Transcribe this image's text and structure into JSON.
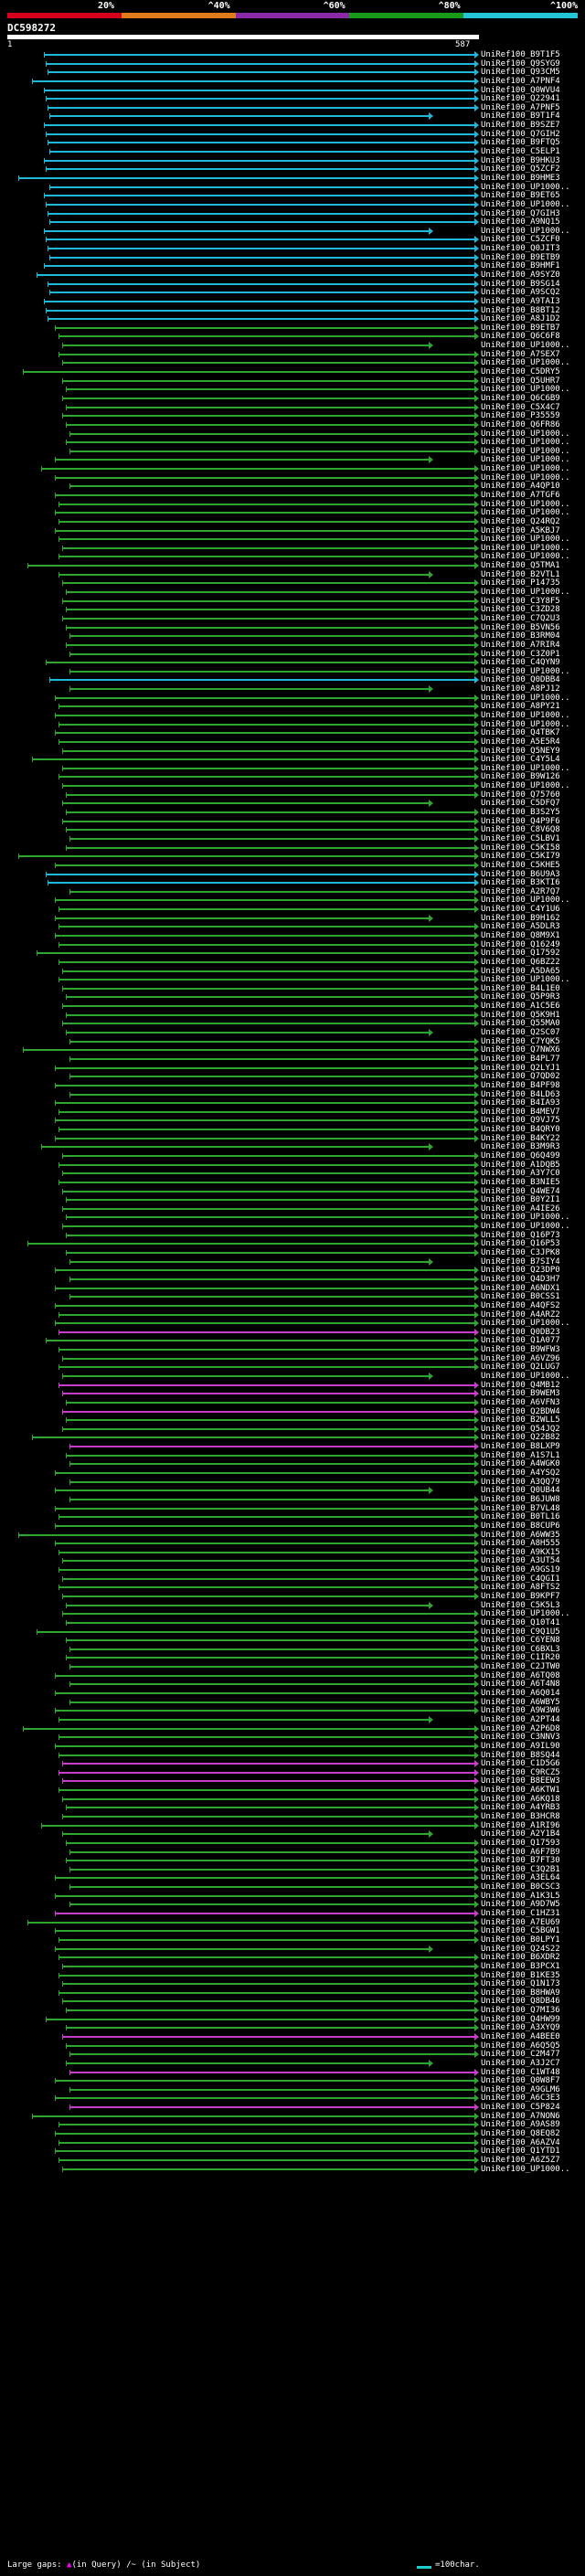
{
  "legend": {
    "ticks": [
      "20%",
      "^40%",
      "^60%",
      "^80%",
      "^100%"
    ],
    "colors": [
      "#d4001c",
      "#e07a1a",
      "#8a2aa8",
      "#1a9a1a",
      "#22c4d6"
    ]
  },
  "query": {
    "name": "DC598272",
    "start": "1",
    "end": "587"
  },
  "hits": [
    {
      "label": "UniRef100_B9T1F5",
      "color": "#1fb8d8"
    },
    {
      "label": "UniRef100_Q9SYG9",
      "color": "#1fb8d8"
    },
    {
      "label": "UniRef100_Q93CM5",
      "color": "#1fb8d8"
    },
    {
      "label": "UniRef100_A7PNF4",
      "color": "#1fb8d8"
    },
    {
      "label": "UniRef100_Q0WVU4",
      "color": "#1fb8d8"
    },
    {
      "label": "UniRef100_Q22941",
      "color": "#1fb8d8"
    },
    {
      "label": "UniRef100_A7PNF5",
      "color": "#1fb8d8"
    },
    {
      "label": "UniRef100_B9T1F4",
      "color": "#1fb8d8"
    },
    {
      "label": "UniRef100_B9SZE7",
      "color": "#1fb8d8"
    },
    {
      "label": "UniRef100_Q7GIH2",
      "color": "#1fb8d8"
    },
    {
      "label": "UniRef100_B9FTQ5",
      "color": "#1fb8d8"
    },
    {
      "label": "UniRef100_C5ELP1",
      "color": "#1fb8d8"
    },
    {
      "label": "UniRef100_B9HKU3",
      "color": "#1fb8d8"
    },
    {
      "label": "UniRef100_Q5ZCF2",
      "color": "#1fb8d8"
    },
    {
      "label": "UniRef100_B9HME3",
      "color": "#1fb8d8"
    },
    {
      "label": "UniRef100_UP1000..",
      "color": "#1fb8d8"
    },
    {
      "label": "UniRef100_B9ET65",
      "color": "#1fb8d8"
    },
    {
      "label": "UniRef100_UP1000..",
      "color": "#1fb8d8"
    },
    {
      "label": "UniRef100_Q7GIH3",
      "color": "#1fb8d8"
    },
    {
      "label": "UniRef100_A9NQ15",
      "color": "#1fb8d8"
    },
    {
      "label": "UniRef100_UP1000..",
      "color": "#1fb8d8"
    },
    {
      "label": "UniRef100_C5ZCF0",
      "color": "#1fb8d8"
    },
    {
      "label": "UniRef100_Q0JIT3",
      "color": "#1fb8d8"
    },
    {
      "label": "UniRef100_B9ETB9",
      "color": "#1fb8d8"
    },
    {
      "label": "UniRef100_B9HMF1",
      "color": "#1fb8d8"
    },
    {
      "label": "UniRef100_A9SYZ0",
      "color": "#1fb8d8"
    },
    {
      "label": "UniRef100_B9SG14",
      "color": "#1fb8d8"
    },
    {
      "label": "UniRef100_A9SCQ2",
      "color": "#1fb8d8"
    },
    {
      "label": "UniRef100_A9TAI3",
      "color": "#1fb8d8"
    },
    {
      "label": "UniRef100_B8BT12",
      "color": "#1fb8d8"
    },
    {
      "label": "UniRef100_A8J1D2",
      "color": "#1fb8d8"
    },
    {
      "label": "UniRef100_B9ETB7",
      "color": "#2ea52e"
    },
    {
      "label": "UniRef100_Q6C6F8",
      "color": "#2ea52e"
    },
    {
      "label": "UniRef100_UP1000..",
      "color": "#2ea52e"
    },
    {
      "label": "UniRef100_A7SEX7",
      "color": "#2ea52e"
    },
    {
      "label": "UniRef100_UP1000..",
      "color": "#2ea52e"
    },
    {
      "label": "UniRef100_C5DRY5",
      "color": "#2ea52e"
    },
    {
      "label": "UniRef100_Q5UHR7",
      "color": "#2ea52e"
    },
    {
      "label": "UniRef100_UP1000..",
      "color": "#2ea52e"
    },
    {
      "label": "UniRef100_Q6C6B9",
      "color": "#2ea52e"
    },
    {
      "label": "UniRef100_C5X4C7",
      "color": "#2ea52e"
    },
    {
      "label": "UniRef100_P35559",
      "color": "#2ea52e"
    },
    {
      "label": "UniRef100_Q6FR86",
      "color": "#2ea52e"
    },
    {
      "label": "UniRef100_UP1000..",
      "color": "#2ea52e"
    },
    {
      "label": "UniRef100_UP1000..",
      "color": "#2ea52e"
    },
    {
      "label": "UniRef100_UP1000..",
      "color": "#2ea52e"
    },
    {
      "label": "UniRef100_UP1000..",
      "color": "#2ea52e"
    },
    {
      "label": "UniRef100_UP1000..",
      "color": "#2ea52e"
    },
    {
      "label": "UniRef100_UP1000..",
      "color": "#2ea52e"
    },
    {
      "label": "UniRef100_A4QP10",
      "color": "#2ea52e"
    },
    {
      "label": "UniRef100_A7TGF6",
      "color": "#2ea52e"
    },
    {
      "label": "UniRef100_UP1000..",
      "color": "#2ea52e"
    },
    {
      "label": "UniRef100_UP1000..",
      "color": "#2ea52e"
    },
    {
      "label": "UniRef100_Q24RQ2",
      "color": "#2ea52e"
    },
    {
      "label": "UniRef100_A5KBJ7",
      "color": "#2ea52e"
    },
    {
      "label": "UniRef100_UP1000..",
      "color": "#2ea52e"
    },
    {
      "label": "UniRef100_UP1000..",
      "color": "#2ea52e"
    },
    {
      "label": "UniRef100_UP1000..",
      "color": "#2ea52e"
    },
    {
      "label": "UniRef100_Q5TMA1",
      "color": "#2ea52e"
    },
    {
      "label": "UniRef100_B2VTL1",
      "color": "#2ea52e"
    },
    {
      "label": "UniRef100_P14735",
      "color": "#2ea52e"
    },
    {
      "label": "UniRef100_UP1000..",
      "color": "#2ea52e"
    },
    {
      "label": "UniRef100_C3Y8F5",
      "color": "#2ea52e"
    },
    {
      "label": "UniRef100_C3ZD28",
      "color": "#2ea52e"
    },
    {
      "label": "UniRef100_C7Q2U3",
      "color": "#2ea52e"
    },
    {
      "label": "UniRef100_B5VN56",
      "color": "#2ea52e"
    },
    {
      "label": "UniRef100_B3RM04",
      "color": "#2ea52e"
    },
    {
      "label": "UniRef100_A7RIR4",
      "color": "#2ea52e"
    },
    {
      "label": "UniRef100_C3Z0P1",
      "color": "#2ea52e"
    },
    {
      "label": "UniRef100_C4QYN9",
      "color": "#2ea52e"
    },
    {
      "label": "UniRef100_UP1000..",
      "color": "#2ea52e"
    },
    {
      "label": "UniRef100_Q0DBB4",
      "color": "#1fb8d8"
    },
    {
      "label": "UniRef100_A8PJ12",
      "color": "#2ea52e"
    },
    {
      "label": "UniRef100_UP1000..",
      "color": "#2ea52e"
    },
    {
      "label": "UniRef100_A8PY21",
      "color": "#2ea52e"
    },
    {
      "label": "UniRef100_UP1000..",
      "color": "#2ea52e"
    },
    {
      "label": "UniRef100_UP1000..",
      "color": "#2ea52e"
    },
    {
      "label": "UniRef100_Q4TBK7",
      "color": "#2ea52e"
    },
    {
      "label": "UniRef100_A5E5R4",
      "color": "#2ea52e"
    },
    {
      "label": "UniRef100_Q5NEY9",
      "color": "#2ea52e"
    },
    {
      "label": "UniRef100_C4Y5L4",
      "color": "#2ea52e"
    },
    {
      "label": "UniRef100_UP1000..",
      "color": "#2ea52e"
    },
    {
      "label": "UniRef100_B9W126",
      "color": "#2ea52e"
    },
    {
      "label": "UniRef100_UP1000..",
      "color": "#2ea52e"
    },
    {
      "label": "UniRef100_Q75760",
      "color": "#2ea52e"
    },
    {
      "label": "UniRef100_C5DFQ7",
      "color": "#2ea52e"
    },
    {
      "label": "UniRef100_B3S2Y5",
      "color": "#2ea52e"
    },
    {
      "label": "UniRef100_Q4P9F6",
      "color": "#2ea52e"
    },
    {
      "label": "UniRef100_C8V6Q8",
      "color": "#2ea52e"
    },
    {
      "label": "UniRef100_C5LBV1",
      "color": "#2ea52e"
    },
    {
      "label": "UniRef100_C5KI58",
      "color": "#2ea52e"
    },
    {
      "label": "UniRef100_C5KI79",
      "color": "#2ea52e"
    },
    {
      "label": "UniRef100_C5KHE5",
      "color": "#2ea52e"
    },
    {
      "label": "UniRef100_B6U9A3",
      "color": "#1fb8d8"
    },
    {
      "label": "UniRef100_B3KTI6",
      "color": "#1fb8d8"
    },
    {
      "label": "UniRef100_A2R7Q7",
      "color": "#2ea52e"
    },
    {
      "label": "UniRef100_UP1000..",
      "color": "#2ea52e"
    },
    {
      "label": "UniRef100_C4Y1U6",
      "color": "#2ea52e"
    },
    {
      "label": "UniRef100_B9H162",
      "color": "#2ea52e"
    },
    {
      "label": "UniRef100_A5DLR3",
      "color": "#2ea52e"
    },
    {
      "label": "UniRef100_Q8M9X1",
      "color": "#2ea52e"
    },
    {
      "label": "UniRef100_Q16249",
      "color": "#2ea52e"
    },
    {
      "label": "UniRef100_Q17592",
      "color": "#2ea52e"
    },
    {
      "label": "UniRef100_Q6BZ22",
      "color": "#2ea52e"
    },
    {
      "label": "UniRef100_A5DA65",
      "color": "#2ea52e"
    },
    {
      "label": "UniRef100_UP1000..",
      "color": "#2ea52e"
    },
    {
      "label": "UniRef100_B4L1E0",
      "color": "#2ea52e"
    },
    {
      "label": "UniRef100_Q5P9R3",
      "color": "#2ea52e"
    },
    {
      "label": "UniRef100_A1C5E6",
      "color": "#2ea52e"
    },
    {
      "label": "UniRef100_Q5K9H1",
      "color": "#2ea52e"
    },
    {
      "label": "UniRef100_Q55MA0",
      "color": "#2ea52e"
    },
    {
      "label": "UniRef100_Q2SC07",
      "color": "#2ea52e"
    },
    {
      "label": "UniRef100_C7YQK5",
      "color": "#2ea52e"
    },
    {
      "label": "UniRef100_Q7NWX6",
      "color": "#2ea52e"
    },
    {
      "label": "UniRef100_B4PL77",
      "color": "#2ea52e"
    },
    {
      "label": "UniRef100_Q2LYJ1",
      "color": "#2ea52e"
    },
    {
      "label": "UniRef100_Q7QD02",
      "color": "#2ea52e"
    },
    {
      "label": "UniRef100_B4PF98",
      "color": "#2ea52e"
    },
    {
      "label": "UniRef100_B4LD63",
      "color": "#2ea52e"
    },
    {
      "label": "UniRef100_B4IA93",
      "color": "#2ea52e"
    },
    {
      "label": "UniRef100_B4MEV7",
      "color": "#2ea52e"
    },
    {
      "label": "UniRef100_Q9VJ75",
      "color": "#2ea52e"
    },
    {
      "label": "UniRef100_B4QRY0",
      "color": "#2ea52e"
    },
    {
      "label": "UniRef100_B4KY22",
      "color": "#2ea52e"
    },
    {
      "label": "UniRef100_B3M9R3",
      "color": "#2ea52e"
    },
    {
      "label": "UniRef100_Q6Q499",
      "color": "#2ea52e"
    },
    {
      "label": "UniRef100_A1DQB5",
      "color": "#2ea52e"
    },
    {
      "label": "UniRef100_A3Y7C0",
      "color": "#2ea52e"
    },
    {
      "label": "UniRef100_B3NIE5",
      "color": "#2ea52e"
    },
    {
      "label": "UniRef100_Q4WE74",
      "color": "#2ea52e"
    },
    {
      "label": "UniRef100_B0Y2I1",
      "color": "#2ea52e"
    },
    {
      "label": "UniRef100_A4IE26",
      "color": "#2ea52e"
    },
    {
      "label": "UniRef100_UP1000..",
      "color": "#2ea52e"
    },
    {
      "label": "UniRef100_UP1000..",
      "color": "#2ea52e"
    },
    {
      "label": "UniRef100_Q16P73",
      "color": "#2ea52e"
    },
    {
      "label": "UniRef100_Q16P53",
      "color": "#2ea52e"
    },
    {
      "label": "UniRef100_C3JPK8",
      "color": "#2ea52e"
    },
    {
      "label": "UniRef100_B7SIY4",
      "color": "#2ea52e"
    },
    {
      "label": "UniRef100_Q23DP0",
      "color": "#2ea52e"
    },
    {
      "label": "UniRef100_Q4D3H7",
      "color": "#2ea52e"
    },
    {
      "label": "UniRef100_A6NDX1",
      "color": "#2ea52e"
    },
    {
      "label": "UniRef100_B0CSS1",
      "color": "#2ea52e"
    },
    {
      "label": "UniRef100_A4QFS2",
      "color": "#2ea52e"
    },
    {
      "label": "UniRef100_A4ARZ2",
      "color": "#2ea52e"
    },
    {
      "label": "UniRef100_UP1000..",
      "color": "#2ea52e"
    },
    {
      "label": "UniRef100_Q0DB23",
      "color": "#c83cc8"
    },
    {
      "label": "UniRef100_Q1A077",
      "color": "#2ea52e"
    },
    {
      "label": "UniRef100_B9WFW3",
      "color": "#2ea52e"
    },
    {
      "label": "UniRef100_A6VZ96",
      "color": "#2ea52e"
    },
    {
      "label": "UniRef100_Q2LUG7",
      "color": "#2ea52e"
    },
    {
      "label": "UniRef100_UP1000..",
      "color": "#2ea52e"
    },
    {
      "label": "UniRef100_Q4MB12",
      "color": "#c83cc8"
    },
    {
      "label": "UniRef100_B9WEM3",
      "color": "#c83cc8"
    },
    {
      "label": "UniRef100_A6VFN3",
      "color": "#2ea52e"
    },
    {
      "label": "UniRef100_Q2BDW4",
      "color": "#c83cc8"
    },
    {
      "label": "UniRef100_B2WLL5",
      "color": "#2ea52e"
    },
    {
      "label": "UniRef100_Q54JQ2",
      "color": "#2ea52e"
    },
    {
      "label": "UniRef100_Q22B82",
      "color": "#2ea52e"
    },
    {
      "label": "UniRef100_B8LXP9",
      "color": "#c83cc8"
    },
    {
      "label": "UniRef100_A1S7L1",
      "color": "#2ea52e"
    },
    {
      "label": "UniRef100_A4WGK0",
      "color": "#2ea52e"
    },
    {
      "label": "UniRef100_A4YSQ2",
      "color": "#2ea52e"
    },
    {
      "label": "UniRef100_A3QQ79",
      "color": "#2ea52e"
    },
    {
      "label": "UniRef100_Q0UB44",
      "color": "#2ea52e"
    },
    {
      "label": "UniRef100_B6JUW8",
      "color": "#2ea52e"
    },
    {
      "label": "UniRef100_B7VL48",
      "color": "#2ea52e"
    },
    {
      "label": "UniRef100_B0TL16",
      "color": "#2ea52e"
    },
    {
      "label": "UniRef100_B8CUP6",
      "color": "#2ea52e"
    },
    {
      "label": "UniRef100_A6WW35",
      "color": "#2ea52e"
    },
    {
      "label": "UniRef100_A8H555",
      "color": "#2ea52e"
    },
    {
      "label": "UniRef100_A9KX15",
      "color": "#2ea52e"
    },
    {
      "label": "UniRef100_A3UT54",
      "color": "#2ea52e"
    },
    {
      "label": "UniRef100_A9GS19",
      "color": "#2ea52e"
    },
    {
      "label": "UniRef100_C4QGI1",
      "color": "#2ea52e"
    },
    {
      "label": "UniRef100_A8FTS2",
      "color": "#2ea52e"
    },
    {
      "label": "UniRef100_B9KPF7",
      "color": "#2ea52e"
    },
    {
      "label": "UniRef100_C5K5L3",
      "color": "#2ea52e"
    },
    {
      "label": "UniRef100_UP1000..",
      "color": "#2ea52e"
    },
    {
      "label": "UniRef100_Q10T41",
      "color": "#2ea52e"
    },
    {
      "label": "UniRef100_C9Q1U5",
      "color": "#2ea52e"
    },
    {
      "label": "UniRef100_C6YEN8",
      "color": "#2ea52e"
    },
    {
      "label": "UniRef100_C6BXL3",
      "color": "#2ea52e"
    },
    {
      "label": "UniRef100_C1IR20",
      "color": "#2ea52e"
    },
    {
      "label": "UniRef100_C2JTW0",
      "color": "#2ea52e"
    },
    {
      "label": "UniRef100_A6TQ08",
      "color": "#2ea52e"
    },
    {
      "label": "UniRef100_A6T4N8",
      "color": "#2ea52e"
    },
    {
      "label": "UniRef100_A6Q014",
      "color": "#2ea52e"
    },
    {
      "label": "UniRef100_A6WBY5",
      "color": "#2ea52e"
    },
    {
      "label": "UniRef100_A9W3W6",
      "color": "#2ea52e"
    },
    {
      "label": "UniRef100_A2PT44",
      "color": "#2ea52e"
    },
    {
      "label": "UniRef100_A2P6D8",
      "color": "#2ea52e"
    },
    {
      "label": "UniRef100_C3NNV3",
      "color": "#2ea52e"
    },
    {
      "label": "UniRef100_A9IL90",
      "color": "#2ea52e"
    },
    {
      "label": "UniRef100_B8SQ44",
      "color": "#2ea52e"
    },
    {
      "label": "UniRef100_C1D5G6",
      "color": "#c83cc8"
    },
    {
      "label": "UniRef100_C9RCZ5",
      "color": "#c83cc8"
    },
    {
      "label": "UniRef100_B8EEW3",
      "color": "#c83cc8"
    },
    {
      "label": "UniRef100_A6KTW1",
      "color": "#2ea52e"
    },
    {
      "label": "UniRef100_A6KQ18",
      "color": "#2ea52e"
    },
    {
      "label": "UniRef100_A4YRB3",
      "color": "#2ea52e"
    },
    {
      "label": "UniRef100_B3HCR8",
      "color": "#2ea52e"
    },
    {
      "label": "UniRef100_A1RI96",
      "color": "#2ea52e"
    },
    {
      "label": "UniRef100_A2Y1B4",
      "color": "#2ea52e"
    },
    {
      "label": "UniRef100_Q17593",
      "color": "#2ea52e"
    },
    {
      "label": "UniRef100_A6F7B9",
      "color": "#2ea52e"
    },
    {
      "label": "UniRef100_B7FT30",
      "color": "#2ea52e"
    },
    {
      "label": "UniRef100_C3Q2B1",
      "color": "#2ea52e"
    },
    {
      "label": "UniRef100_A3EL64",
      "color": "#2ea52e"
    },
    {
      "label": "UniRef100_B0CSC3",
      "color": "#2ea52e"
    },
    {
      "label": "UniRef100_A1K3L5",
      "color": "#2ea52e"
    },
    {
      "label": "UniRef100_A9D7W5",
      "color": "#2ea52e"
    },
    {
      "label": "UniRef100_C1HZ31",
      "color": "#c83cc8"
    },
    {
      "label": "UniRef100_A7EU69",
      "color": "#2ea52e"
    },
    {
      "label": "UniRef100_C5BGW1",
      "color": "#2ea52e"
    },
    {
      "label": "UniRef100_B0LPY1",
      "color": "#2ea52e"
    },
    {
      "label": "UniRef100_Q24S22",
      "color": "#2ea52e"
    },
    {
      "label": "UniRef100_B6XDR2",
      "color": "#2ea52e"
    },
    {
      "label": "UniRef100_B3PCX1",
      "color": "#2ea52e"
    },
    {
      "label": "UniRef100_B1KE35",
      "color": "#2ea52e"
    },
    {
      "label": "UniRef100_Q1N173",
      "color": "#2ea52e"
    },
    {
      "label": "UniRef100_B8HWA9",
      "color": "#2ea52e"
    },
    {
      "label": "UniRef100_Q8DB46",
      "color": "#2ea52e"
    },
    {
      "label": "UniRef100_Q7MI36",
      "color": "#2ea52e"
    },
    {
      "label": "UniRef100_Q4HW99",
      "color": "#2ea52e"
    },
    {
      "label": "UniRef100_A3XYQ9",
      "color": "#2ea52e"
    },
    {
      "label": "UniRef100_A4BEE0",
      "color": "#c83cc8"
    },
    {
      "label": "UniRef100_A6Q5Q5",
      "color": "#2ea52e"
    },
    {
      "label": "UniRef100_C2M477",
      "color": "#2ea52e"
    },
    {
      "label": "UniRef100_A3J2C7",
      "color": "#2ea52e"
    },
    {
      "label": "UniRef100_C1WT48",
      "color": "#c83cc8"
    },
    {
      "label": "UniRef100_Q0W8F7",
      "color": "#2ea52e"
    },
    {
      "label": "UniRef100_A9GLM6",
      "color": "#2ea52e"
    },
    {
      "label": "UniRef100_A6C3E3",
      "color": "#2ea52e"
    },
    {
      "label": "UniRef100_C5P824",
      "color": "#c83cc8"
    },
    {
      "label": "UniRef100_A7NON6",
      "color": "#2ea52e"
    },
    {
      "label": "UniRef100_A9AS89",
      "color": "#2ea52e"
    },
    {
      "label": "UniRef100_Q8EQ82",
      "color": "#2ea52e"
    },
    {
      "label": "UniRef100_A6AZV4",
      "color": "#2ea52e"
    },
    {
      "label": "UniRef100_Q1YTD1",
      "color": "#2ea52e"
    },
    {
      "label": "UniRef100_A6Z5Z7",
      "color": "#2ea52e"
    },
    {
      "label": "UniRef100_UP1000..",
      "color": "#2ea52e"
    }
  ],
  "footer": {
    "large_gaps": "Large gaps:",
    "in_query": "(in Query)",
    "in_subject": "/~ (in Subject)",
    "scale": "=100char."
  }
}
